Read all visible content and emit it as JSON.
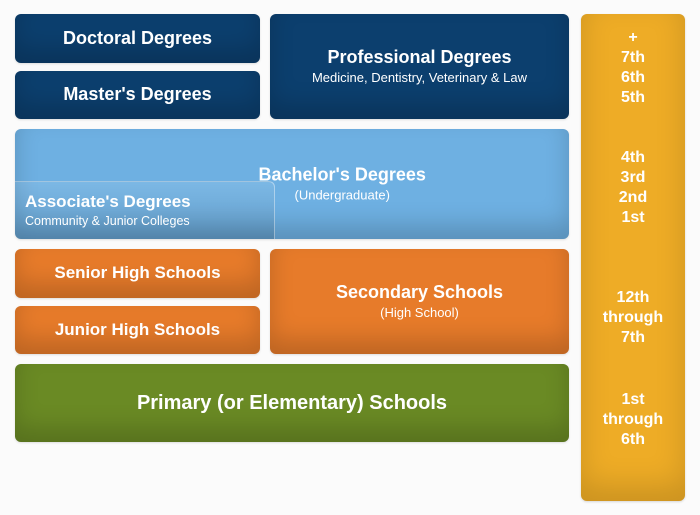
{
  "colors": {
    "darkblue": "#0c3f6e",
    "lightblue": "#6eb0e2",
    "orange": "#e77b2a",
    "green": "#6a8a24",
    "sidebar": "#eeac26"
  },
  "graduate": {
    "doctoral": "Doctoral Degrees",
    "masters": "Master's Degrees",
    "professional_title": "Professional Degrees",
    "professional_sub": "Medicine, Dentistry, Veterinary & Law"
  },
  "undergrad": {
    "bachelor_title": "Bachelor's Degrees",
    "bachelor_sub": "(Undergraduate)",
    "associate_title": "Associate's Degrees",
    "associate_sub": "Community & Junior Colleges"
  },
  "secondary": {
    "senior": "Senior High Schools",
    "junior": "Junior High Schools",
    "main_title": "Secondary Schools",
    "main_sub": "(High School)"
  },
  "primary": {
    "title": "Primary (or Elementary) Schools"
  },
  "years": {
    "grad": [
      "+",
      "7th",
      "6th",
      "5th"
    ],
    "bach": [
      "4th",
      "3rd",
      "2nd",
      "1st"
    ],
    "sec": [
      "12th",
      "through",
      "7th"
    ],
    "pri": [
      "1st",
      "through",
      "6th"
    ]
  }
}
